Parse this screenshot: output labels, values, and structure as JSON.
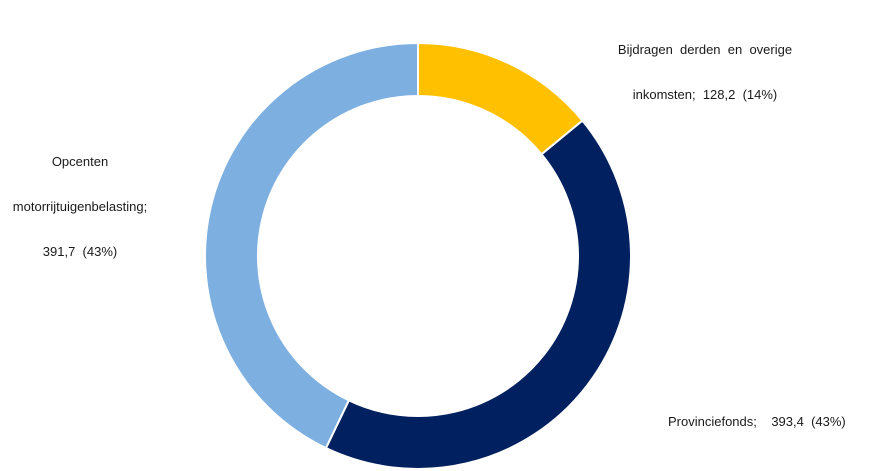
{
  "chart_data": {
    "type": "pie",
    "variant": "donut",
    "slices": [
      {
        "name": "Bijdragen derden en overige inkomsten",
        "value": 128.2,
        "value_label": "128,2",
        "percent_label": "(14%)",
        "color": "#FFC000"
      },
      {
        "name": "Provinciefonds",
        "value": 393.4,
        "value_label": "393,4",
        "percent_label": "(43%)",
        "color": "#002060"
      },
      {
        "name": "Opcenten motorrijtuigenbelasting",
        "value": 391.7,
        "value_label": "391,7",
        "percent_label": "(43%)",
        "color": "#7DB0E0"
      }
    ],
    "labels": {
      "yellow": [
        "Bijdragen  derden  en  overige",
        "inkomsten;  128,2  (14%)"
      ],
      "navy": [
        "Provinciefonds;    393,4  (43%)"
      ],
      "blue": [
        "Opcenten",
        "motorrijtuigenbelasting;",
        "391,7  (43%)"
      ]
    }
  }
}
